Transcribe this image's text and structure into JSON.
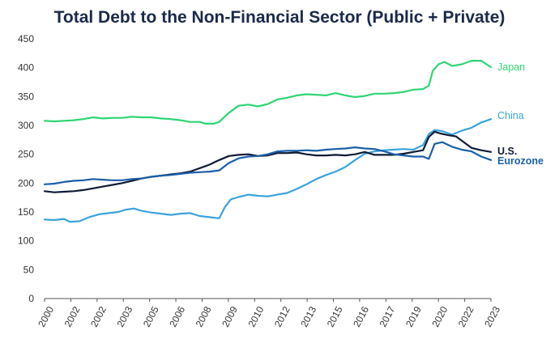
{
  "chart_data": {
    "type": "line",
    "title": "Total Debt to the Non-Financial Sector (Public + Private)",
    "xlabel": "",
    "ylabel": "",
    "ylim": [
      0,
      450
    ],
    "xlim": [
      2000,
      2023
    ],
    "yticks": [
      0,
      50,
      100,
      150,
      200,
      250,
      300,
      350,
      400,
      450
    ],
    "xtick_labels": [
      "2000",
      "2002",
      "2002",
      "2003",
      "2005",
      "2006",
      "2008",
      "2009",
      "2010",
      "2012",
      "2013",
      "2015",
      "2016",
      "2017",
      "2019",
      "2020",
      "2022",
      "2023"
    ],
    "grid": false,
    "legend": "right, inline at line ends",
    "series": [
      {
        "name": "Japan",
        "color": "#2ed573",
        "x": [
          2000,
          2000.5,
          2001,
          2001.5,
          2002,
          2002.5,
          2003,
          2003.5,
          2004,
          2004.5,
          2005,
          2005.5,
          2006,
          2006.5,
          2007,
          2007.5,
          2008,
          2008.3,
          2008.7,
          2009,
          2009.5,
          2010,
          2010.5,
          2011,
          2011.5,
          2012,
          2012.5,
          2013,
          2013.5,
          2014,
          2014.5,
          2015,
          2015.5,
          2016,
          2016.5,
          2017,
          2017.5,
          2018,
          2018.5,
          2019,
          2019.5,
          2019.8,
          2020.0,
          2020.3,
          2020.6,
          2021,
          2021.5,
          2022,
          2022.5,
          2023
        ],
        "values": [
          308,
          307,
          308,
          309,
          311,
          314,
          312,
          313,
          313,
          315,
          314,
          314,
          312,
          311,
          309,
          306,
          306,
          303,
          303,
          306,
          322,
          334,
          336,
          333,
          337,
          345,
          348,
          352,
          354,
          353,
          352,
          356,
          352,
          349,
          351,
          355,
          355,
          356,
          358,
          362,
          363,
          369,
          394,
          406,
          410,
          403,
          406,
          412,
          412,
          401
        ]
      },
      {
        "name": "China",
        "color": "#3aa3dc",
        "x": [
          2000,
          2000.5,
          2001,
          2001.3,
          2001.8,
          2002.3,
          2002.8,
          2003.3,
          2003.8,
          2004.2,
          2004.6,
          2005,
          2005.5,
          2006,
          2006.5,
          2007,
          2007.5,
          2008,
          2008.5,
          2009,
          2009.3,
          2009.6,
          2010,
          2010.5,
          2011,
          2011.5,
          2012,
          2012.5,
          2013,
          2013.5,
          2014,
          2014.5,
          2015,
          2015.5,
          2016,
          2016.5,
          2017,
          2017.5,
          2018,
          2018.5,
          2019,
          2019.5,
          2019.8,
          2020.1,
          2020.5,
          2021,
          2021.5,
          2022,
          2022.5,
          2023
        ],
        "values": [
          137,
          136,
          138,
          133,
          134,
          141,
          146,
          148,
          150,
          154,
          156,
          152,
          149,
          147,
          145,
          147,
          148,
          143,
          141,
          139,
          159,
          172,
          176,
          180,
          178,
          177,
          180,
          183,
          190,
          198,
          207,
          214,
          220,
          228,
          240,
          251,
          255,
          257,
          258,
          259,
          258,
          266,
          285,
          292,
          290,
          284,
          291,
          296,
          305,
          311
        ]
      },
      {
        "name": "U.S.",
        "color": "#0f1b35",
        "x": [
          2000,
          2000.5,
          2001,
          2001.5,
          2002,
          2002.5,
          2003,
          2003.5,
          2004,
          2004.5,
          2005,
          2005.5,
          2006,
          2006.5,
          2007,
          2007.5,
          2008,
          2008.5,
          2009,
          2009.5,
          2010,
          2010.5,
          2011,
          2011.5,
          2012,
          2012.5,
          2013,
          2013.5,
          2014,
          2014.5,
          2015,
          2015.5,
          2016,
          2016.5,
          2017,
          2017.5,
          2018,
          2018.5,
          2019,
          2019.5,
          2019.8,
          2020.1,
          2020.4,
          2020.8,
          2021.2,
          2021.6,
          2022,
          2022.5,
          2023
        ],
        "values": [
          186,
          184,
          185,
          186,
          188,
          191,
          194,
          197,
          200,
          204,
          208,
          211,
          213,
          215,
          217,
          220,
          226,
          232,
          240,
          247,
          249,
          250,
          247,
          248,
          252,
          252,
          253,
          250,
          248,
          248,
          249,
          248,
          250,
          254,
          249,
          249,
          249,
          251,
          254,
          257,
          280,
          289,
          286,
          283,
          281,
          271,
          261,
          257,
          254
        ]
      },
      {
        "name": "Eurozone",
        "color": "#1b5fa8",
        "x": [
          2000,
          2000.5,
          2001,
          2001.5,
          2002,
          2002.5,
          2003,
          2003.5,
          2004,
          2004.5,
          2005,
          2005.5,
          2006,
          2006.5,
          2007,
          2007.5,
          2008,
          2008.5,
          2009,
          2009.5,
          2010,
          2010.5,
          2011,
          2011.5,
          2012,
          2012.5,
          2013,
          2013.5,
          2014,
          2014.5,
          2015,
          2015.5,
          2016,
          2016.5,
          2017,
          2017.5,
          2018,
          2018.5,
          2019,
          2019.5,
          2019.8,
          2020.1,
          2020.5,
          2021,
          2021.5,
          2022,
          2022.5,
          2023
        ],
        "values": [
          198,
          199,
          202,
          204,
          205,
          207,
          206,
          205,
          205,
          207,
          208,
          211,
          213,
          214,
          216,
          218,
          219,
          220,
          222,
          235,
          243,
          246,
          247,
          250,
          255,
          256,
          256,
          257,
          256,
          258,
          259,
          260,
          262,
          260,
          259,
          255,
          250,
          248,
          246,
          246,
          242,
          268,
          271,
          263,
          258,
          255,
          246,
          240
        ]
      }
    ]
  }
}
